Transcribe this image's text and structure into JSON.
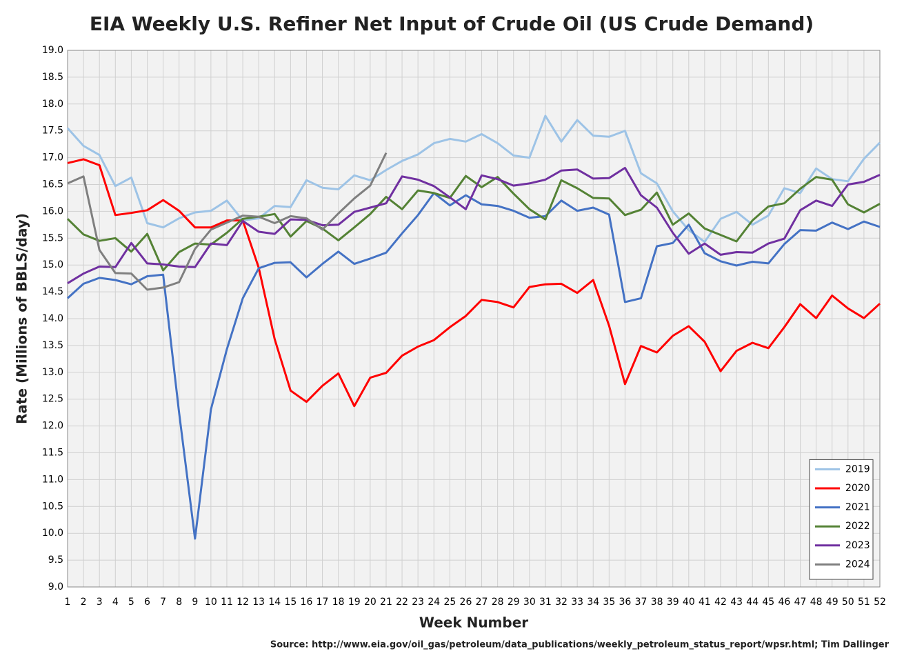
{
  "chart_data": {
    "type": "line",
    "title": "EIA Weekly U.S. Refiner Net Input of Crude Oil (US Crude Demand)",
    "x_label": "Week Number",
    "y_label": "Rate (Millions of BBLS/day)",
    "source": "Source: http://www.eia.gov/oil_gas/petroleum/data_publications/weekly_petroleum_status_report/wpsr.html; Tim Dallinger",
    "x": [
      1,
      2,
      3,
      4,
      5,
      6,
      7,
      8,
      9,
      10,
      11,
      12,
      13,
      14,
      15,
      16,
      17,
      18,
      19,
      20,
      21,
      22,
      23,
      24,
      25,
      26,
      27,
      28,
      29,
      30,
      31,
      32,
      33,
      34,
      35,
      36,
      37,
      38,
      39,
      40,
      41,
      42,
      43,
      44,
      45,
      46,
      47,
      48,
      49,
      50,
      51,
      52
    ],
    "xlim": [
      1,
      52
    ],
    "xticks": [
      1,
      2,
      3,
      4,
      5,
      6,
      7,
      8,
      9,
      10,
      11,
      12,
      13,
      14,
      15,
      16,
      17,
      18,
      19,
      20,
      21,
      22,
      23,
      24,
      25,
      26,
      27,
      28,
      29,
      30,
      31,
      32,
      33,
      34,
      35,
      36,
      37,
      38,
      39,
      40,
      41,
      42,
      43,
      44,
      45,
      46,
      47,
      48,
      49,
      50,
      51,
      52
    ],
    "ylim": [
      9,
      19
    ],
    "yticks": [
      {
        "value": 9,
        "label": "9.0"
      },
      9.5,
      {
        "value": 10,
        "label": "10.0"
      },
      10.5,
      {
        "value": 11,
        "label": "11.0"
      },
      11.5,
      {
        "value": 12,
        "label": "12.0"
      },
      12.5,
      {
        "value": 13,
        "label": "13.0"
      },
      13.5,
      {
        "value": 14,
        "label": "14.0"
      },
      14.5,
      {
        "value": 15,
        "label": "15.0"
      },
      15.5,
      {
        "value": 16,
        "label": "16.0"
      },
      16.5,
      {
        "value": 17,
        "label": "17.0"
      },
      17.5,
      {
        "value": 18,
        "label": "18.0"
      },
      18.5,
      {
        "value": 19,
        "label": "19.0"
      }
    ],
    "grid": true,
    "legend": "lower right",
    "series": [
      {
        "name": "2019",
        "color": "#9dc3e6",
        "values": [
          17.55,
          17.22,
          17.05,
          16.47,
          16.63,
          15.78,
          15.7,
          15.87,
          15.98,
          16.01,
          16.2,
          15.83,
          15.87,
          16.1,
          16.08,
          16.58,
          16.44,
          16.41,
          16.67,
          16.58,
          16.77,
          16.94,
          17.06,
          17.27,
          17.35,
          17.3,
          17.44,
          17.27,
          17.04,
          17.0,
          17.78,
          17.3,
          17.7,
          17.41,
          17.39,
          17.5,
          16.71,
          16.52,
          16.0,
          15.65,
          15.43,
          15.86,
          15.99,
          15.75,
          15.92,
          16.43,
          16.34,
          16.8,
          16.6,
          16.56,
          16.98,
          17.28
        ]
      },
      {
        "name": "2020",
        "color": "#ff0000",
        "values": [
          16.9,
          16.97,
          16.86,
          15.93,
          15.97,
          16.02,
          16.21,
          16.01,
          15.7,
          15.7,
          15.83,
          15.83,
          14.95,
          13.62,
          12.66,
          12.45,
          12.75,
          12.98,
          12.37,
          12.9,
          12.99,
          13.31,
          13.48,
          13.6,
          13.84,
          14.05,
          14.35,
          14.31,
          14.21,
          14.59,
          14.64,
          14.65,
          14.48,
          14.72,
          13.87,
          12.78,
          13.49,
          13.37,
          13.68,
          13.86,
          13.57,
          13.02,
          13.4,
          13.55,
          13.45,
          13.84,
          14.27,
          14.01,
          14.43,
          14.19,
          14.01,
          14.28
        ]
      },
      {
        "name": "2021",
        "color": "#4472c4",
        "values": [
          14.38,
          14.65,
          14.76,
          14.72,
          14.64,
          14.79,
          14.82,
          12.25,
          9.9,
          12.31,
          13.43,
          14.38,
          14.94,
          15.04,
          15.05,
          14.77,
          15.02,
          15.25,
          15.02,
          15.12,
          15.23,
          15.59,
          15.93,
          16.34,
          16.11,
          16.3,
          16.13,
          16.1,
          16.01,
          15.88,
          15.91,
          16.2,
          16.01,
          16.07,
          15.94,
          14.31,
          14.38,
          15.35,
          15.41,
          15.75,
          15.22,
          15.07,
          14.99,
          15.06,
          15.03,
          15.39,
          15.65,
          15.64,
          15.79,
          15.67,
          15.81,
          15.71
        ]
      },
      {
        "name": "2022",
        "color": "#548235",
        "values": [
          15.86,
          15.57,
          15.45,
          15.5,
          15.25,
          15.58,
          14.9,
          15.24,
          15.4,
          15.38,
          15.6,
          15.86,
          15.9,
          15.95,
          15.53,
          15.82,
          15.68,
          15.46,
          15.7,
          15.95,
          16.27,
          16.04,
          16.39,
          16.34,
          16.25,
          16.66,
          16.45,
          16.64,
          16.33,
          16.04,
          15.85,
          16.58,
          16.43,
          16.25,
          16.24,
          15.93,
          16.03,
          16.35,
          15.75,
          15.96,
          15.68,
          15.56,
          15.44,
          15.83,
          16.09,
          16.15,
          16.42,
          16.64,
          16.59,
          16.13,
          15.98,
          16.14
        ]
      },
      {
        "name": "2023",
        "color": "#7030a0",
        "values": [
          14.66,
          14.84,
          14.97,
          14.96,
          15.41,
          15.03,
          15.01,
          14.97,
          14.96,
          15.4,
          15.37,
          15.82,
          15.62,
          15.58,
          15.85,
          15.84,
          15.74,
          15.75,
          15.99,
          16.07,
          16.15,
          16.65,
          16.59,
          16.47,
          16.26,
          16.04,
          16.67,
          16.6,
          16.48,
          16.52,
          16.59,
          16.76,
          16.78,
          16.61,
          16.62,
          16.81,
          16.3,
          16.07,
          15.6,
          15.21,
          15.4,
          15.19,
          15.24,
          15.23,
          15.4,
          15.49,
          16.02,
          16.2,
          16.1,
          16.5,
          16.55,
          16.68
        ]
      },
      {
        "name": "2024",
        "color": "#7f7f7f",
        "values": [
          16.52,
          16.65,
          15.28,
          14.85,
          14.84,
          14.54,
          14.58,
          14.68,
          15.3,
          15.66,
          15.79,
          15.92,
          15.9,
          15.78,
          15.91,
          15.87,
          15.66,
          15.96,
          16.24,
          16.48,
          17.09,
          null,
          null,
          null,
          null,
          null,
          null,
          null,
          null,
          null,
          null,
          null,
          null,
          null,
          null,
          null,
          null,
          null,
          null,
          null,
          null,
          null,
          null,
          null,
          null,
          null,
          null,
          null,
          null,
          null,
          null,
          null
        ]
      }
    ]
  }
}
